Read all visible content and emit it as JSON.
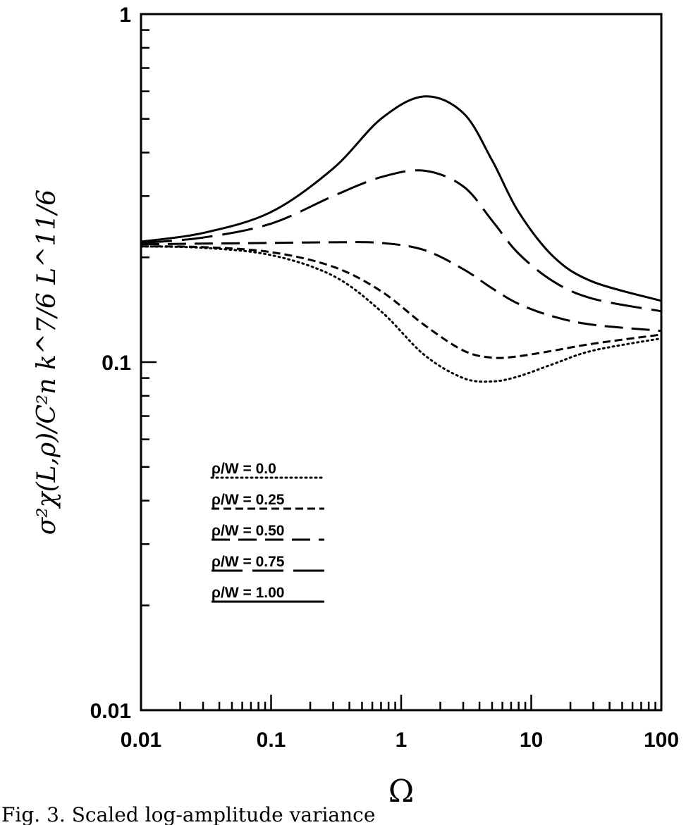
{
  "chart_data": {
    "type": "line",
    "x_scale": "log",
    "y_scale": "log",
    "xlim": [
      0.01,
      100
    ],
    "ylim": [
      0.01,
      1
    ],
    "xlabel": "Ω",
    "ylabel": "σ²χ(L,ρ)/C²n k^7/6 L^11/6",
    "x_ticks": [
      "0.01",
      "0.1",
      "1",
      "10",
      "100"
    ],
    "y_ticks": [
      "0.01",
      "0.1",
      "1"
    ],
    "legend_placement": "center-left",
    "series": [
      {
        "name": "ρ/W = 0.0",
        "style": "dotted",
        "x": [
          0.01,
          0.03,
          0.1,
          0.3,
          0.7,
          1.5,
          3,
          5,
          8,
          15,
          30,
          100
        ],
        "y": [
          0.215,
          0.213,
          0.203,
          0.177,
          0.14,
          0.105,
          0.09,
          0.088,
          0.091,
          0.099,
          0.108,
          0.117
        ]
      },
      {
        "name": "ρ/W = 0.25",
        "style": "short-dash",
        "x": [
          0.01,
          0.03,
          0.1,
          0.3,
          0.7,
          1.5,
          3,
          5,
          8,
          15,
          30,
          100
        ],
        "y": [
          0.215,
          0.214,
          0.207,
          0.188,
          0.16,
          0.128,
          0.108,
          0.103,
          0.104,
          0.108,
          0.113,
          0.12
        ]
      },
      {
        "name": "ρ/W = 0.50",
        "style": "medium-dash",
        "x": [
          0.01,
          0.03,
          0.1,
          0.3,
          0.7,
          1.5,
          3,
          5,
          8,
          15,
          30,
          100
        ],
        "y": [
          0.218,
          0.219,
          0.22,
          0.221,
          0.22,
          0.21,
          0.185,
          0.163,
          0.147,
          0.135,
          0.128,
          0.123
        ]
      },
      {
        "name": "ρ/W = 0.75",
        "style": "long-dash",
        "x": [
          0.01,
          0.03,
          0.1,
          0.3,
          0.7,
          1.5,
          3,
          5,
          8,
          15,
          30,
          100
        ],
        "y": [
          0.22,
          0.228,
          0.25,
          0.3,
          0.34,
          0.355,
          0.32,
          0.255,
          0.205,
          0.17,
          0.152,
          0.14
        ]
      },
      {
        "name": "ρ/W = 1.00",
        "style": "solid",
        "x": [
          0.01,
          0.03,
          0.1,
          0.3,
          0.7,
          1.5,
          3,
          5,
          8,
          15,
          30,
          100
        ],
        "y": [
          0.222,
          0.235,
          0.27,
          0.36,
          0.5,
          0.58,
          0.52,
          0.38,
          0.27,
          0.2,
          0.17,
          0.15
        ]
      }
    ]
  },
  "caption": "Fig. 3.   Scaled log-amplitude variance"
}
